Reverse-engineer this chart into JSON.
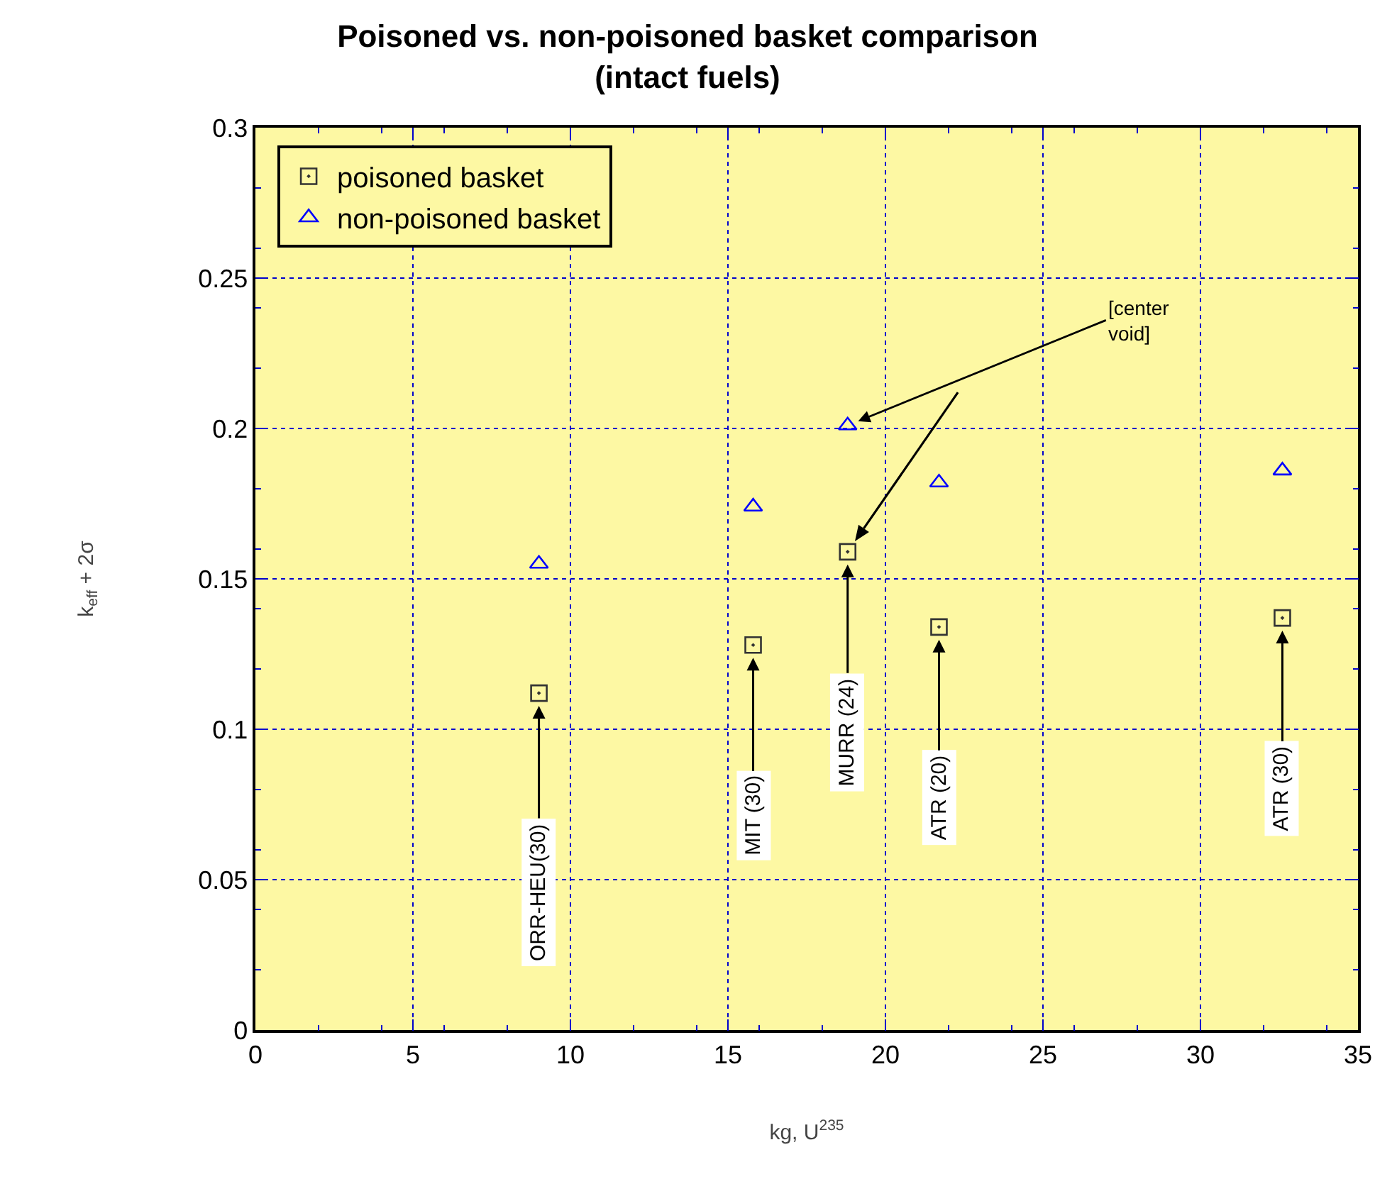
{
  "chart_data": {
    "type": "scatter",
    "title": "Poisoned vs. non-poisoned basket comparison\n(intact fuels)",
    "xlabel": "kg, U$^{235}$",
    "ylabel": "k$_{eff}$ + 2σ",
    "x": [
      9.0,
      15.8,
      18.8,
      21.7,
      32.6
    ],
    "series": [
      {
        "name": "poisoned basket",
        "color": "#333333",
        "marker": "square",
        "values": [
          0.112,
          0.128,
          0.159,
          0.134,
          0.137
        ]
      },
      {
        "name": "non-poisoned basket",
        "color": "#0000ff",
        "marker": "triangle",
        "values": [
          0.155,
          0.174,
          0.201,
          0.182,
          0.186
        ]
      }
    ],
    "annotations": [
      {
        "text": "ORR-HEU(30)",
        "x": 9.0,
        "y": 0.112
      },
      {
        "text": "MIT (30)",
        "x": 15.8,
        "y": 0.128
      },
      {
        "text": "MURR (24)",
        "x": 18.8,
        "y": 0.159
      },
      {
        "text": "ATR (20)",
        "x": 21.7,
        "y": 0.134
      },
      {
        "text": "ATR (30)",
        "x": 32.6,
        "y": 0.137
      },
      {
        "text": "[center\nvoid]",
        "x": 18.8,
        "y": 0.201
      }
    ],
    "xlim": [
      0,
      35
    ],
    "xticks": [
      0,
      5,
      10,
      15,
      20,
      25,
      30,
      35
    ],
    "ylim": [
      0,
      0.3
    ],
    "yticks": [
      0,
      0.05,
      0.1,
      0.15,
      0.2,
      0.25,
      0.3
    ],
    "grid": true,
    "legend": "top left"
  }
}
